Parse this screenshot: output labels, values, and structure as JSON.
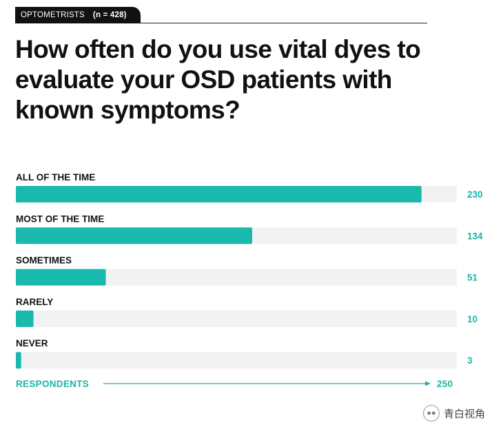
{
  "header": {
    "label": "OPTOMETRISTS",
    "count": "(n = 428)"
  },
  "title": "How often do you use vital dyes to evaluate your OSD patients with known symptoms?",
  "watermark": "青白视角",
  "colors": {
    "bar": "#1ab9ad",
    "track": "#f2f2f2",
    "value_text": "#19b4a8",
    "text": "#111111"
  },
  "chart_data": {
    "type": "bar",
    "orientation": "horizontal",
    "categories": [
      "ALL OF THE TIME",
      "MOST OF THE TIME",
      "SOMETIMES",
      "RARELY",
      "NEVER"
    ],
    "values": [
      230,
      134,
      51,
      10,
      3
    ],
    "value_labels": [
      "230",
      "134",
      "51",
      "10",
      "3"
    ],
    "xlim": [
      0,
      250
    ],
    "axis_label": "RESPONDENTS",
    "axis_max_label": "250",
    "title": "How often do you use vital dyes to evaluate your OSD patients with known symptoms?"
  }
}
